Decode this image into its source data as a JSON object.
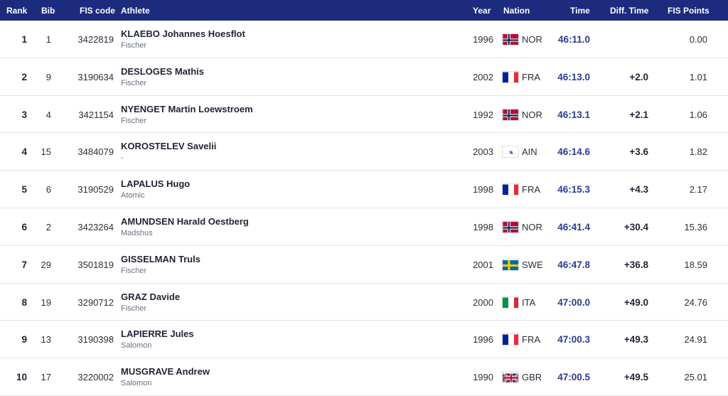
{
  "header": {
    "rank": "Rank",
    "bib": "Bib",
    "fis_code": "FIS code",
    "athlete": "Athlete",
    "year": "Year",
    "nation": "Nation",
    "time": "Time",
    "diff_time": "Diff. Time",
    "fis_points": "FIS Points"
  },
  "colors": {
    "header_bg": "#1c2b7e",
    "time_text": "#2a3c94"
  },
  "rows": [
    {
      "rank": "1",
      "bib": "1",
      "fis_code": "3422819",
      "name": "KLAEBO Johannes Hoesflot",
      "brand": "Fischer",
      "year": "1996",
      "flag": "NOR-flag-icon",
      "nation": "NOR",
      "time": "46:11.0",
      "diff": "",
      "points": "0.00"
    },
    {
      "rank": "2",
      "bib": "9",
      "fis_code": "3190634",
      "name": "DESLOGES Mathis",
      "brand": "Fischer",
      "year": "2002",
      "flag": "FRA-flag-icon",
      "nation": "FRA",
      "time": "46:13.0",
      "diff": "+2.0",
      "points": "1.01"
    },
    {
      "rank": "3",
      "bib": "4",
      "fis_code": "3421154",
      "name": "NYENGET Martin Loewstroem",
      "brand": "Fischer",
      "year": "1992",
      "flag": "NOR-flag-icon",
      "nation": "NOR",
      "time": "46:13.1",
      "diff": "+2.1",
      "points": "1.06"
    },
    {
      "rank": "4",
      "bib": "15",
      "fis_code": "3484079",
      "name": "KOROSTELEV Savelii",
      "brand": "-",
      "year": "2003",
      "flag": "AIN-flag-icon",
      "nation": "AIN",
      "time": "46:14.6",
      "diff": "+3.6",
      "points": "1.82"
    },
    {
      "rank": "5",
      "bib": "6",
      "fis_code": "3190529",
      "name": "LAPALUS Hugo",
      "brand": "Atomic",
      "year": "1998",
      "flag": "FRA-flag-icon",
      "nation": "FRA",
      "time": "46:15.3",
      "diff": "+4.3",
      "points": "2.17"
    },
    {
      "rank": "6",
      "bib": "2",
      "fis_code": "3423264",
      "name": "AMUNDSEN Harald Oestberg",
      "brand": "Madshus",
      "year": "1998",
      "flag": "NOR-flag-icon",
      "nation": "NOR",
      "time": "46:41.4",
      "diff": "+30.4",
      "points": "15.36"
    },
    {
      "rank": "7",
      "bib": "29",
      "fis_code": "3501819",
      "name": "GISSELMAN Truls",
      "brand": "Fischer",
      "year": "2001",
      "flag": "SWE-flag-icon",
      "nation": "SWE",
      "time": "46:47.8",
      "diff": "+36.8",
      "points": "18.59"
    },
    {
      "rank": "8",
      "bib": "19",
      "fis_code": "3290712",
      "name": "GRAZ Davide",
      "brand": "Fischer",
      "year": "2000",
      "flag": "ITA-flag-icon",
      "nation": "ITA",
      "time": "47:00.0",
      "diff": "+49.0",
      "points": "24.76"
    },
    {
      "rank": "9",
      "bib": "13",
      "fis_code": "3190398",
      "name": "LAPIERRE Jules",
      "brand": "Salomon",
      "year": "1996",
      "flag": "FRA-flag-icon",
      "nation": "FRA",
      "time": "47:00.3",
      "diff": "+49.3",
      "points": "24.91"
    },
    {
      "rank": "10",
      "bib": "17",
      "fis_code": "3220002",
      "name": "MUSGRAVE Andrew",
      "brand": "Salomon",
      "year": "1990",
      "flag": "GBR-flag-icon",
      "nation": "GBR",
      "time": "47:00.5",
      "diff": "+49.5",
      "points": "25.01"
    }
  ]
}
